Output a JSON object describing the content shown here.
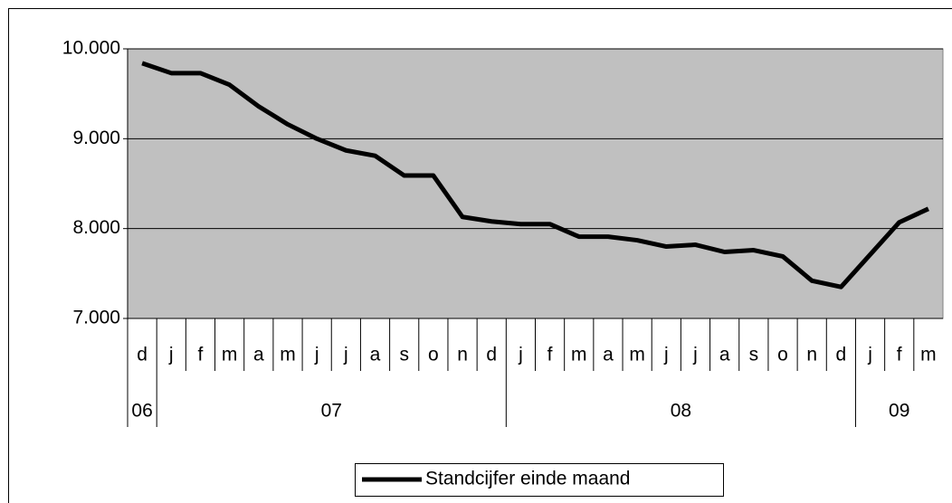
{
  "chart_data": {
    "type": "line",
    "categories": [
      "d",
      "j",
      "f",
      "m",
      "a",
      "m",
      "j",
      "j",
      "a",
      "s",
      "o",
      "n",
      "d",
      "j",
      "f",
      "m",
      "a",
      "m",
      "j",
      "j",
      "a",
      "s",
      "o",
      "n",
      "d",
      "j",
      "f",
      "m"
    ],
    "category_groups": [
      {
        "label": "06",
        "size": 1
      },
      {
        "label": "07",
        "size": 12
      },
      {
        "label": "08",
        "size": 12
      },
      {
        "label": "09",
        "size": 3
      }
    ],
    "series": [
      {
        "name": "Standcijfer einde maand",
        "color": "#000000",
        "values": [
          9840,
          9730,
          9730,
          9600,
          9360,
          9160,
          9000,
          8870,
          8810,
          8590,
          8590,
          8130,
          8080,
          8050,
          8050,
          7910,
          7910,
          7870,
          7800,
          7820,
          7740,
          7760,
          7690,
          7420,
          7350,
          7710,
          8070,
          8220
        ]
      }
    ],
    "ylim": [
      7000,
      10000
    ],
    "yticks": [
      {
        "value": 7000,
        "label": "7.000"
      },
      {
        "value": 8000,
        "label": "8.000"
      },
      {
        "value": 9000,
        "label": "9.000"
      },
      {
        "value": 10000,
        "label": "10.000"
      }
    ],
    "grid": true,
    "plot_background": "#c0c0c0",
    "legend": "bottom"
  }
}
